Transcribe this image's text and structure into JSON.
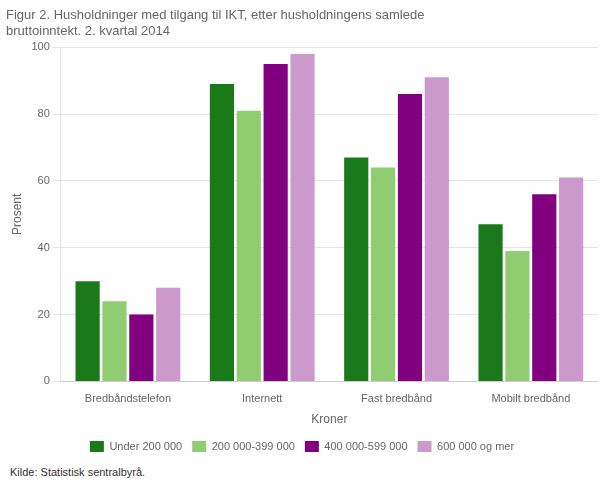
{
  "chart_data": {
    "type": "bar",
    "title": [
      "Figur 2. Husholdninger med tilgang til IKT, etter husholdningens samlede",
      "bruttoinntekt. 2. kvartal 2014"
    ],
    "ylabel": "Prosent",
    "xlabel": "Kroner",
    "footnote": "Kilde: Statistisk sentralbyrå.",
    "categories": [
      "Bredbåndstelefon",
      "Internett",
      "Fast bredbånd",
      "Mobilt bredbånd"
    ],
    "series": [
      {
        "name": "Under 200 000",
        "color": "#1a7a1a",
        "values": [
          30,
          89,
          67,
          47
        ]
      },
      {
        "name": "200 000-399 000",
        "color": "#90cc70",
        "values": [
          24,
          81,
          64,
          39
        ]
      },
      {
        "name": "400 000-599 000",
        "color": "#800080",
        "values": [
          20,
          95,
          86,
          56
        ]
      },
      {
        "name": "600 000 og mer",
        "color": "#cc99cc",
        "values": [
          28,
          98,
          91,
          61
        ]
      }
    ],
    "ylim": [
      0,
      100
    ],
    "yticks": [
      0,
      20,
      40,
      60,
      80,
      100
    ],
    "grid": true,
    "legend": "bottom"
  }
}
